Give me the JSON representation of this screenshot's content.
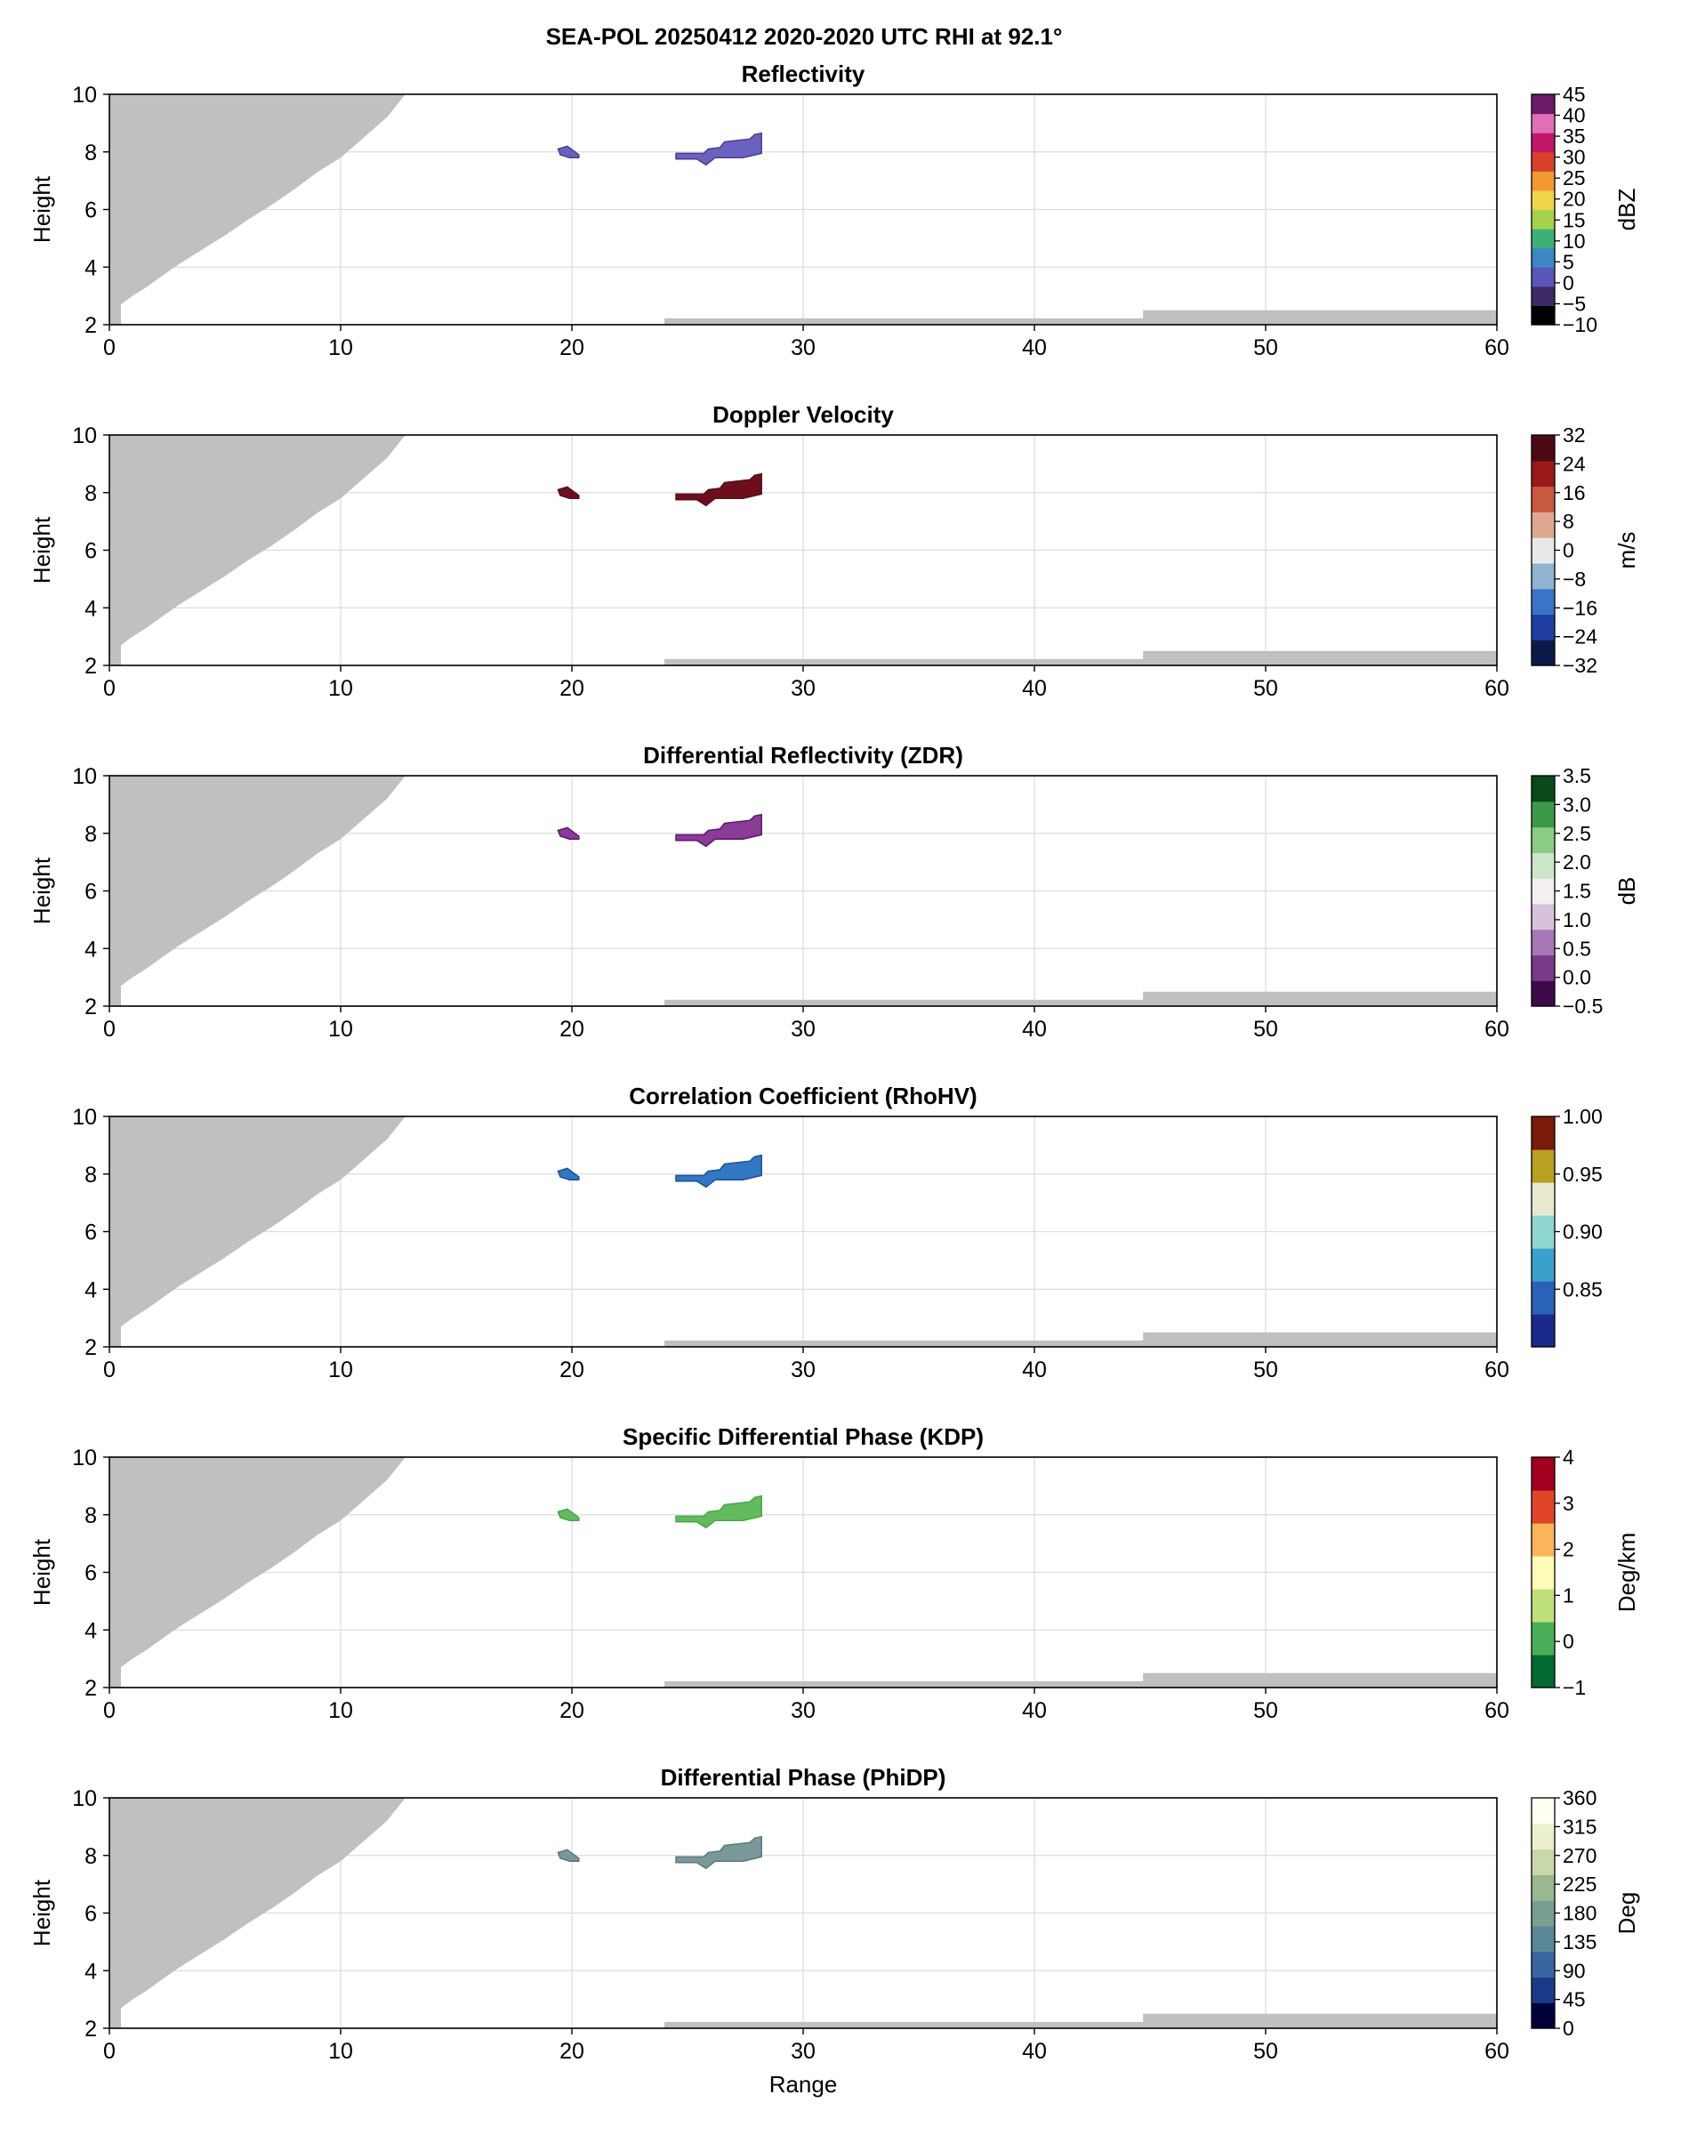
{
  "figure_title": "SEA-POL 20250412 2020-2020 UTC RHI at 92.1°",
  "colors": {
    "blocked_mask": "#c0c0c0",
    "grid": "#dddddd",
    "axes": "#000000"
  },
  "chart_data": [
    {
      "type": "heatmap",
      "title": "Reflectivity",
      "xlabel": "",
      "ylabel": "Height",
      "xlim": [
        0,
        60
      ],
      "ylim": [
        2,
        10
      ],
      "xticks": [
        "0",
        "10",
        "20",
        "30",
        "40",
        "50",
        "60"
      ],
      "yticks": [
        "2",
        "4",
        "6",
        "8",
        "10"
      ],
      "grid": true,
      "colorbar": {
        "label": "dBZ",
        "ticks": [
          "−10",
          "−5",
          "0",
          "5",
          "10",
          "15",
          "20",
          "25",
          "30",
          "35",
          "40",
          "45"
        ],
        "colors": [
          "#000000",
          "#3b2a66",
          "#5a56b8",
          "#3c86c4",
          "#3db07a",
          "#a6d24b",
          "#f0d447",
          "#f29933",
          "#d9402b",
          "#c2186a",
          "#e06fb8",
          "#6a1a66"
        ]
      },
      "echo_color": "#6a62c0",
      "echo_dark": "#4b3f8f"
    },
    {
      "type": "heatmap",
      "title": "Doppler Velocity",
      "xlabel": "",
      "ylabel": "Height",
      "xlim": [
        0,
        60
      ],
      "ylim": [
        2,
        10
      ],
      "xticks": [
        "0",
        "10",
        "20",
        "30",
        "40",
        "50",
        "60"
      ],
      "yticks": [
        "2",
        "4",
        "6",
        "8",
        "10"
      ],
      "grid": true,
      "colorbar": {
        "label": "m/s",
        "ticks": [
          "−32",
          "−24",
          "−16",
          "−8",
          "0",
          "8",
          "16",
          "24",
          "32"
        ],
        "colors": [
          "#0b1a4a",
          "#1f3fa0",
          "#3a73c8",
          "#8fb3d0",
          "#e8e8e8",
          "#e0a890",
          "#c85a40",
          "#9a1a1a",
          "#4a0a14"
        ]
      },
      "echo_color": "#6e0e1c",
      "echo_dark": "#55101c"
    },
    {
      "type": "heatmap",
      "title": "Differential Reflectivity (ZDR)",
      "xlabel": "",
      "ylabel": "Height",
      "xlim": [
        0,
        60
      ],
      "ylim": [
        2,
        10
      ],
      "xticks": [
        "0",
        "10",
        "20",
        "30",
        "40",
        "50",
        "60"
      ],
      "yticks": [
        "2",
        "4",
        "6",
        "8",
        "10"
      ],
      "grid": true,
      "colorbar": {
        "label": "dB",
        "ticks": [
          "−0.5",
          "0.0",
          "0.5",
          "1.0",
          "1.5",
          "2.0",
          "2.5",
          "3.0",
          "3.5"
        ],
        "colors": [
          "#3f0a4a",
          "#7a3a8a",
          "#a777b8",
          "#d7c2dc",
          "#f2eef2",
          "#cde6c7",
          "#8ccb86",
          "#3a9a4a",
          "#0a4a1a"
        ]
      },
      "echo_color": "#8a3c98",
      "echo_dark": "#5a1a68"
    },
    {
      "type": "heatmap",
      "title": "Correlation Coefficient (RhoHV)",
      "xlabel": "",
      "ylabel": "",
      "xlim": [
        0,
        60
      ],
      "ylim": [
        2,
        10
      ],
      "xticks": [
        "0",
        "10",
        "20",
        "30",
        "40",
        "50",
        "60"
      ],
      "yticks": [
        "2",
        "4",
        "6",
        "8",
        "10"
      ],
      "grid": true,
      "colorbar": {
        "label": "",
        "ticks": [
          "0.85",
          "0.90",
          "0.95",
          "1.00"
        ],
        "tick_values": [
          0.85,
          0.9,
          0.95,
          1.0
        ],
        "range": [
          0.8,
          1.0
        ],
        "colors": [
          "#1a2a8a",
          "#2a62b8",
          "#3aa0cc",
          "#8fd6d0",
          "#e8ead0",
          "#b8a020",
          "#7a1a0a"
        ]
      },
      "echo_color": "#3078c0",
      "echo_dark": "#1f4f99"
    },
    {
      "type": "heatmap",
      "title": "Specific Differential Phase (KDP)",
      "xlabel": "",
      "ylabel": "Height",
      "xlim": [
        0,
        60
      ],
      "ylim": [
        2,
        10
      ],
      "xticks": [
        "0",
        "10",
        "20",
        "30",
        "40",
        "50",
        "60"
      ],
      "yticks": [
        "2",
        "4",
        "6",
        "8",
        "10"
      ],
      "grid": true,
      "colorbar": {
        "label": "Deg/km",
        "ticks": [
          "−1",
          "0",
          "1",
          "2",
          "3",
          "4"
        ],
        "colors": [
          "#006a30",
          "#4aae5a",
          "#bfe07a",
          "#fffbb8",
          "#fbb45a",
          "#e0452a",
          "#a0001e"
        ]
      },
      "echo_color": "#62bb5e",
      "echo_dark": "#4aa54a"
    },
    {
      "type": "heatmap",
      "title": "Differential Phase (PhiDP)",
      "xlabel": "Range",
      "ylabel": "Height",
      "xlim": [
        0,
        60
      ],
      "ylim": [
        2,
        10
      ],
      "xticks": [
        "0",
        "10",
        "20",
        "30",
        "40",
        "50",
        "60"
      ],
      "yticks": [
        "2",
        "4",
        "6",
        "8",
        "10"
      ],
      "grid": true,
      "colorbar": {
        "label": "Deg",
        "ticks": [
          "0",
          "45",
          "90",
          "135",
          "180",
          "225",
          "270",
          "315",
          "360"
        ],
        "colors": [
          "#00003a",
          "#1a3a88",
          "#3a66a0",
          "#5a8898",
          "#78a090",
          "#9ab890",
          "#c8d8a8",
          "#ecf0d0",
          "#fffff2"
        ]
      },
      "echo_color": "#7a9898",
      "echo_dark": "#5a7a80"
    }
  ],
  "echo_regions": [
    {
      "name": "echo-small",
      "points": [
        [
          19.4,
          8.1
        ],
        [
          19.8,
          8.2
        ],
        [
          20.3,
          7.9
        ],
        [
          20.3,
          7.8
        ],
        [
          19.9,
          7.8
        ],
        [
          19.5,
          7.9
        ]
      ]
    },
    {
      "name": "echo-main",
      "points": [
        [
          24.5,
          7.75
        ],
        [
          25.4,
          7.75
        ],
        [
          25.8,
          7.55
        ],
        [
          26.2,
          7.8
        ],
        [
          27.4,
          7.8
        ],
        [
          28.2,
          7.95
        ],
        [
          28.2,
          8.65
        ],
        [
          27.9,
          8.6
        ],
        [
          27.7,
          8.45
        ],
        [
          26.6,
          8.35
        ],
        [
          26.4,
          8.15
        ],
        [
          25.9,
          8.1
        ],
        [
          25.7,
          7.95
        ],
        [
          24.5,
          7.95
        ]
      ]
    }
  ],
  "masks": {
    "beam_blockage_upper_left": [
      [
        0,
        2
      ],
      [
        0.5,
        2
      ],
      [
        0.5,
        2.7
      ],
      [
        1.0,
        3.0
      ],
      [
        1.6,
        3.3
      ],
      [
        2.2,
        3.65
      ],
      [
        3.0,
        4.1
      ],
      [
        4.0,
        4.6
      ],
      [
        5.0,
        5.1
      ],
      [
        6.0,
        5.65
      ],
      [
        7.0,
        6.15
      ],
      [
        8.0,
        6.7
      ],
      [
        9.0,
        7.3
      ],
      [
        10.0,
        7.8
      ],
      [
        11.0,
        8.5
      ],
      [
        12.0,
        9.2
      ],
      [
        12.8,
        10
      ],
      [
        0,
        10
      ]
    ],
    "ground_strip_1": [
      [
        24,
        2
      ],
      [
        45,
        2
      ],
      [
        45,
        2.22
      ],
      [
        24,
        2.22
      ]
    ],
    "ground_strip_2": [
      [
        44.7,
        2
      ],
      [
        60,
        2
      ],
      [
        60,
        2.5
      ],
      [
        44.7,
        2.5
      ]
    ]
  }
}
